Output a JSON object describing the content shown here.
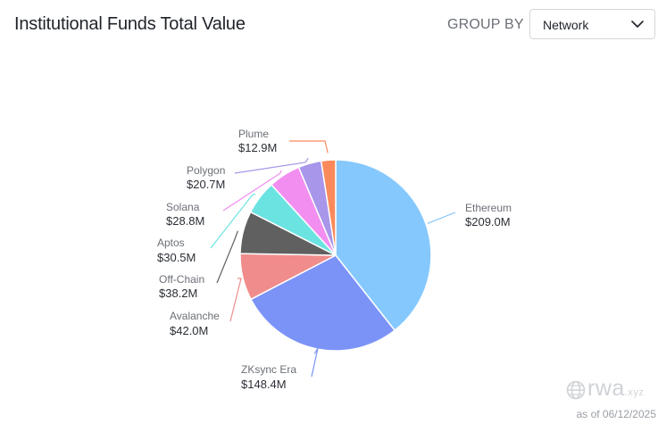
{
  "header": {
    "title": "Institutional Funds Total Value",
    "group_by_label": "GROUP BY",
    "group_by_value": "Network"
  },
  "footer": {
    "brand": "rwa",
    "brand_suffix": ".xyz",
    "as_of": "as of 06/12/2025"
  },
  "chart_data": {
    "type": "pie",
    "title": "Institutional Funds Total Value",
    "slices": [
      {
        "name": "Ethereum",
        "value": 209.0,
        "value_label": "$209.0M",
        "color": "#85c8fd"
      },
      {
        "name": "ZKsync Era",
        "value": 148.4,
        "value_label": "$148.4M",
        "color": "#7b93f7"
      },
      {
        "name": "Avalanche",
        "value": 42.0,
        "value_label": "$42.0M",
        "color": "#f08c8c"
      },
      {
        "name": "Off-Chain",
        "value": 38.2,
        "value_label": "$38.2M",
        "color": "#606060"
      },
      {
        "name": "Aptos",
        "value": 30.5,
        "value_label": "$30.5M",
        "color": "#6be3e1"
      },
      {
        "name": "Solana",
        "value": 28.8,
        "value_label": "$28.8M",
        "color": "#f18ef0"
      },
      {
        "name": "Polygon",
        "value": 20.7,
        "value_label": "$20.7M",
        "color": "#a896ea"
      },
      {
        "name": "Plume",
        "value": 12.9,
        "value_label": "$12.9M",
        "color": "#fa8a5c"
      }
    ]
  }
}
